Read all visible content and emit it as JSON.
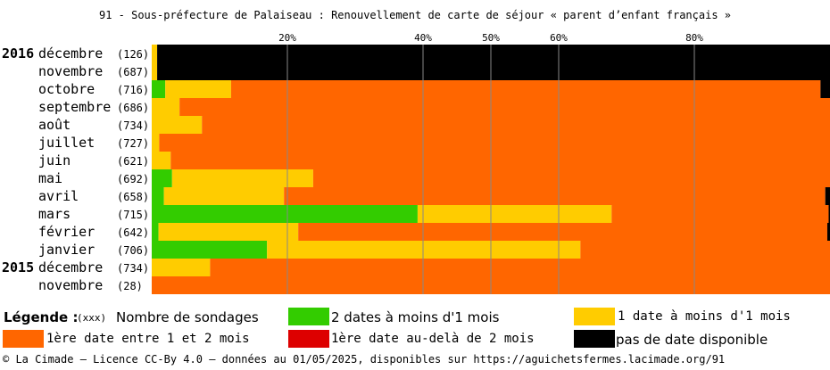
{
  "title": "91 - Sous-préfecture de Palaiseau : Renouvellement de carte de séjour « parent d’enfant français »",
  "legend": {
    "title": "Légende :",
    "count_note": "(xxx)",
    "count_label": "Nombre de sondages",
    "items": [
      {
        "label": "2 dates à moins d'1 mois",
        "color": "#33cc00"
      },
      {
        "label": "1 date à moins d'1 mois",
        "color": "#ffcc00"
      },
      {
        "label": "1ère date entre 1 et 2 mois",
        "color": "#ff6600"
      },
      {
        "label": "1ère date au-delà de 2 mois",
        "color": "#dd0000"
      },
      {
        "label": "pas de date disponible",
        "color": "#000000"
      }
    ]
  },
  "footer": "© La Cimade — Licence CC-By 4.0 — données au 01/05/2025, disponibles sur https://aguichetsfermes.lacimade.org/91",
  "chart_data": {
    "type": "bar",
    "orientation": "horizontal",
    "stacked": true,
    "x_unit": "%",
    "xlim": [
      0,
      100
    ],
    "x_ticks": [
      20,
      40,
      50,
      60,
      80
    ],
    "x_tick_labels": [
      "20%",
      "40%",
      "50%",
      "60%",
      "80%"
    ],
    "grid": true,
    "legend_position": "bottom",
    "rows": [
      {
        "year": "2016",
        "month": "décembre",
        "count": "(126)"
      },
      {
        "year": "",
        "month": "novembre",
        "count": "(687)"
      },
      {
        "year": "",
        "month": "octobre",
        "count": "(716)"
      },
      {
        "year": "",
        "month": "septembre",
        "count": "(686)"
      },
      {
        "year": "",
        "month": "août",
        "count": "(734)"
      },
      {
        "year": "",
        "month": "juillet",
        "count": "(727)"
      },
      {
        "year": "",
        "month": "juin",
        "count": "(621)"
      },
      {
        "year": "",
        "month": "mai",
        "count": "(692)"
      },
      {
        "year": "",
        "month": "avril",
        "count": "(658)"
      },
      {
        "year": "",
        "month": "mars",
        "count": "(715)"
      },
      {
        "year": "",
        "month": "février",
        "count": "(642)"
      },
      {
        "year": "",
        "month": "janvier",
        "count": "(706)"
      },
      {
        "year": "2015",
        "month": "décembre",
        "count": "(734)"
      },
      {
        "year": "",
        "month": "novembre",
        "count": "(28)"
      }
    ],
    "series": [
      {
        "name": "2 dates à moins d'1 mois",
        "color": "#33cc00",
        "values": [
          0,
          0,
          2.0,
          0,
          0,
          0,
          0,
          3.0,
          1.8,
          39.2,
          1.0,
          17.0,
          0,
          0
        ]
      },
      {
        "name": "1 date à moins d'1 mois",
        "color": "#ffcc00",
        "values": [
          0.8,
          0.8,
          9.7,
          4.1,
          7.4,
          1.1,
          2.8,
          20.8,
          17.7,
          28.6,
          20.6,
          46.2,
          8.6,
          0
        ]
      },
      {
        "name": "1ère date entre 1 et 2 mois",
        "color": "#ff6600",
        "values": [
          0,
          0,
          86.9,
          95.9,
          92.6,
          98.9,
          97.2,
          76.2,
          79.8,
          32.0,
          78.0,
          36.8,
          91.4,
          100
        ]
      },
      {
        "name": "1ère date au-delà de 2 mois",
        "color": "#dd0000",
        "values": [
          0,
          0,
          0,
          0,
          0,
          0,
          0,
          0,
          0,
          0,
          0,
          0,
          0,
          0
        ]
      },
      {
        "name": "pas de date disponible",
        "color": "#000000",
        "values": [
          99.2,
          99.2,
          1.4,
          0,
          0,
          0,
          0,
          0,
          0.7,
          0.2,
          0.4,
          0,
          0,
          0
        ]
      }
    ]
  }
}
